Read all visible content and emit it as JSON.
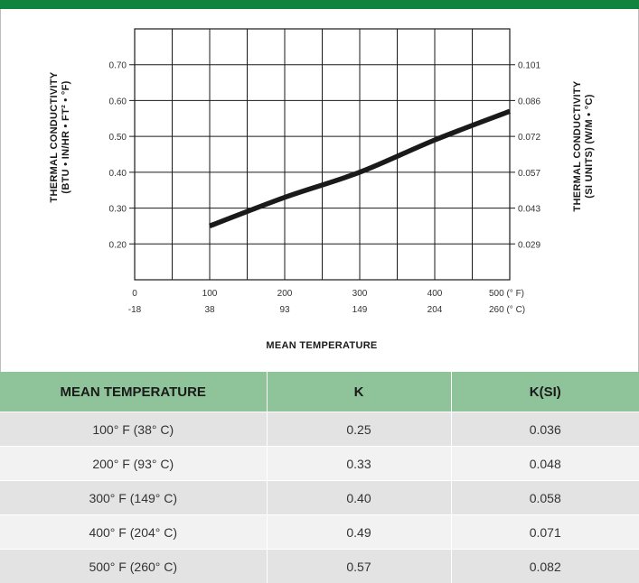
{
  "colors": {
    "header_bar": "#10843f",
    "table_header": "#8fc49a",
    "row_dark": "#e3e3e3",
    "row_light": "#f2f2f2",
    "curve": "#1a1a1a"
  },
  "chart_data": {
    "type": "line",
    "title": "",
    "xlabel": "MEAN TEMPERATURE",
    "ylabel_left": [
      "THERMAL CONDUCTIVITY",
      "(BTU • IN/HR • FT² • °F)"
    ],
    "ylabel_right": [
      "THERMAL CONDUCTIVITY",
      "(SI UNITS) (W/M • °C)"
    ],
    "x_ticks_f": [
      "0",
      "100",
      "200",
      "300",
      "400",
      "500 (° F)"
    ],
    "x_ticks_c": [
      "-18",
      "38",
      "93",
      "149",
      "204",
      "260 (° C)"
    ],
    "y_ticks_left": [
      "0.70",
      "0.60",
      "0.50",
      "0.40",
      "0.30",
      "0.20"
    ],
    "y_ticks_right": [
      "0.101",
      "0.086",
      "0.072",
      "0.057",
      "0.043",
      "0.029"
    ],
    "xlim": [
      0,
      500
    ],
    "ylim": [
      0.1,
      0.8
    ],
    "grid": true,
    "series": [
      {
        "x": [
          100,
          200,
          300,
          400,
          500
        ],
        "y": [
          0.25,
          0.33,
          0.4,
          0.49,
          0.57
        ]
      }
    ]
  },
  "table": {
    "headers": [
      "MEAN TEMPERATURE",
      "K",
      "K(SI)"
    ],
    "rows": [
      [
        "100° F (38° C)",
        "0.25",
        "0.036"
      ],
      [
        "200° F (93° C)",
        "0.33",
        "0.048"
      ],
      [
        "300° F (149° C)",
        "0.40",
        "0.058"
      ],
      [
        "400° F (204° C)",
        "0.49",
        "0.071"
      ],
      [
        "500° F (260° C)",
        "0.57",
        "0.082"
      ]
    ]
  }
}
